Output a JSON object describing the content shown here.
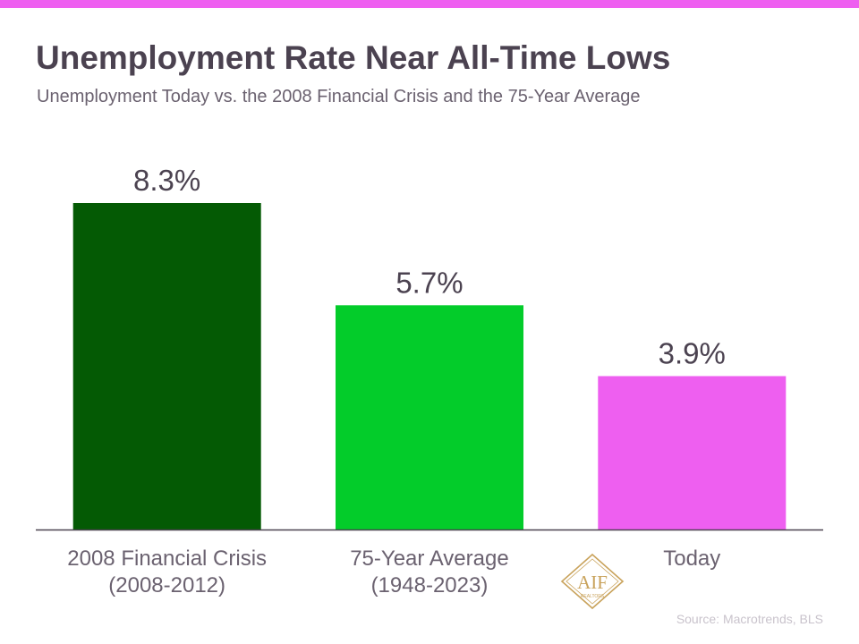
{
  "header": {
    "title": "Unemployment Rate Near All-Time Lows",
    "subtitle": "Unemployment Today vs. the 2008 Financial Crisis and the 75-Year Average"
  },
  "colors": {
    "accent_bar": "#ee5ff0",
    "text_dark": "#4b4250",
    "text_muted": "#6b6270"
  },
  "chart_data": {
    "type": "bar",
    "categories": [
      [
        "2008 Financial Crisis",
        "(2008-2012)"
      ],
      [
        "75-Year Average",
        "(1948-2023)"
      ],
      [
        "Today"
      ]
    ],
    "values": [
      8.3,
      5.7,
      3.9
    ],
    "value_labels": [
      "8.3%",
      "5.7%",
      "3.9%"
    ],
    "colors": [
      "#045a04",
      "#03cc2a",
      "#ee5ff0"
    ],
    "ylim": [
      0,
      8.3
    ],
    "grid": false,
    "legend": "none"
  },
  "logo": {
    "letters": "AIF",
    "tagline": "REALTORS"
  },
  "footer": {
    "source": "Source: Macrotrends, BLS"
  }
}
